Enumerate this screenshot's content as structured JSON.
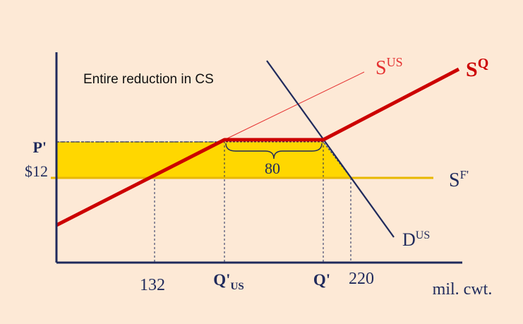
{
  "annotation": "Entire reduction in CS",
  "y_labels": {
    "p_prime": "P'",
    "world_price": "$12"
  },
  "x_labels": {
    "x132": "132",
    "q_us_prefix": "Q'",
    "q_us_sub": "US",
    "q_prime": "Q'",
    "x220": "220",
    "unit": "mil. cwt."
  },
  "bracket_label": "80",
  "curves": {
    "s_us": {
      "base": "S",
      "sup": "US"
    },
    "s_q": {
      "base": "S",
      "sup": "Q"
    },
    "s_f": {
      "base": "S",
      "sup": "F'"
    },
    "d_us": {
      "base": "D",
      "sup": "US"
    }
  },
  "colors": {
    "background": "#fde9d6",
    "region_fill": "#ffd700",
    "quota_supply": "#cc0000",
    "domestic_supply": "#e53030",
    "demand": "#1f2a5c",
    "world_supply": "#e8b800",
    "axis": "#1f2a5c"
  }
}
